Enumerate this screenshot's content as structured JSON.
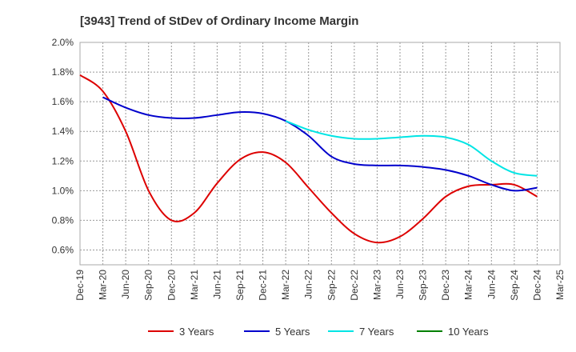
{
  "chart_data": {
    "type": "line",
    "title": "[3943]  Trend of StDev of Ordinary Income Margin",
    "xlabel": "",
    "ylabel": "",
    "x": [
      "Dec-19",
      "Mar-20",
      "Jun-20",
      "Sep-20",
      "Dec-20",
      "Mar-21",
      "Jun-21",
      "Sep-21",
      "Dec-21",
      "Mar-22",
      "Jun-22",
      "Sep-22",
      "Dec-22",
      "Mar-23",
      "Jun-23",
      "Sep-23",
      "Dec-23",
      "Mar-24",
      "Jun-24",
      "Sep-24",
      "Dec-24",
      "Mar-25"
    ],
    "ylim": [
      0.5,
      2.0
    ],
    "yticks": [
      "0.6%",
      "0.8%",
      "1.0%",
      "1.2%",
      "1.4%",
      "1.6%",
      "1.8%",
      "2.0%"
    ],
    "grid": true,
    "legend_position": "bottom",
    "series": [
      {
        "name": "3 Years",
        "color": "#dd0000",
        "values": [
          1.78,
          1.67,
          1.4,
          1.0,
          0.8,
          0.85,
          1.05,
          1.21,
          1.26,
          1.19,
          1.02,
          0.85,
          0.71,
          0.65,
          0.69,
          0.81,
          0.96,
          1.03,
          1.04,
          1.04,
          0.96,
          null
        ]
      },
      {
        "name": "5 Years",
        "color": "#0000cc",
        "values": [
          null,
          1.63,
          1.56,
          1.51,
          1.49,
          1.49,
          1.51,
          1.53,
          1.52,
          1.47,
          1.37,
          1.23,
          1.18,
          1.17,
          1.17,
          1.16,
          1.14,
          1.1,
          1.04,
          1.0,
          1.02,
          null
        ]
      },
      {
        "name": "7 Years",
        "color": "#00e5e5",
        "values": [
          null,
          null,
          null,
          null,
          null,
          null,
          null,
          null,
          null,
          1.47,
          1.41,
          1.37,
          1.35,
          1.35,
          1.36,
          1.37,
          1.36,
          1.31,
          1.2,
          1.12,
          1.1,
          null
        ]
      },
      {
        "name": "10 Years",
        "color": "#008000",
        "values": [
          null,
          null,
          null,
          null,
          null,
          null,
          null,
          null,
          null,
          null,
          null,
          null,
          null,
          null,
          null,
          null,
          null,
          null,
          null,
          null,
          null,
          null
        ]
      }
    ]
  }
}
